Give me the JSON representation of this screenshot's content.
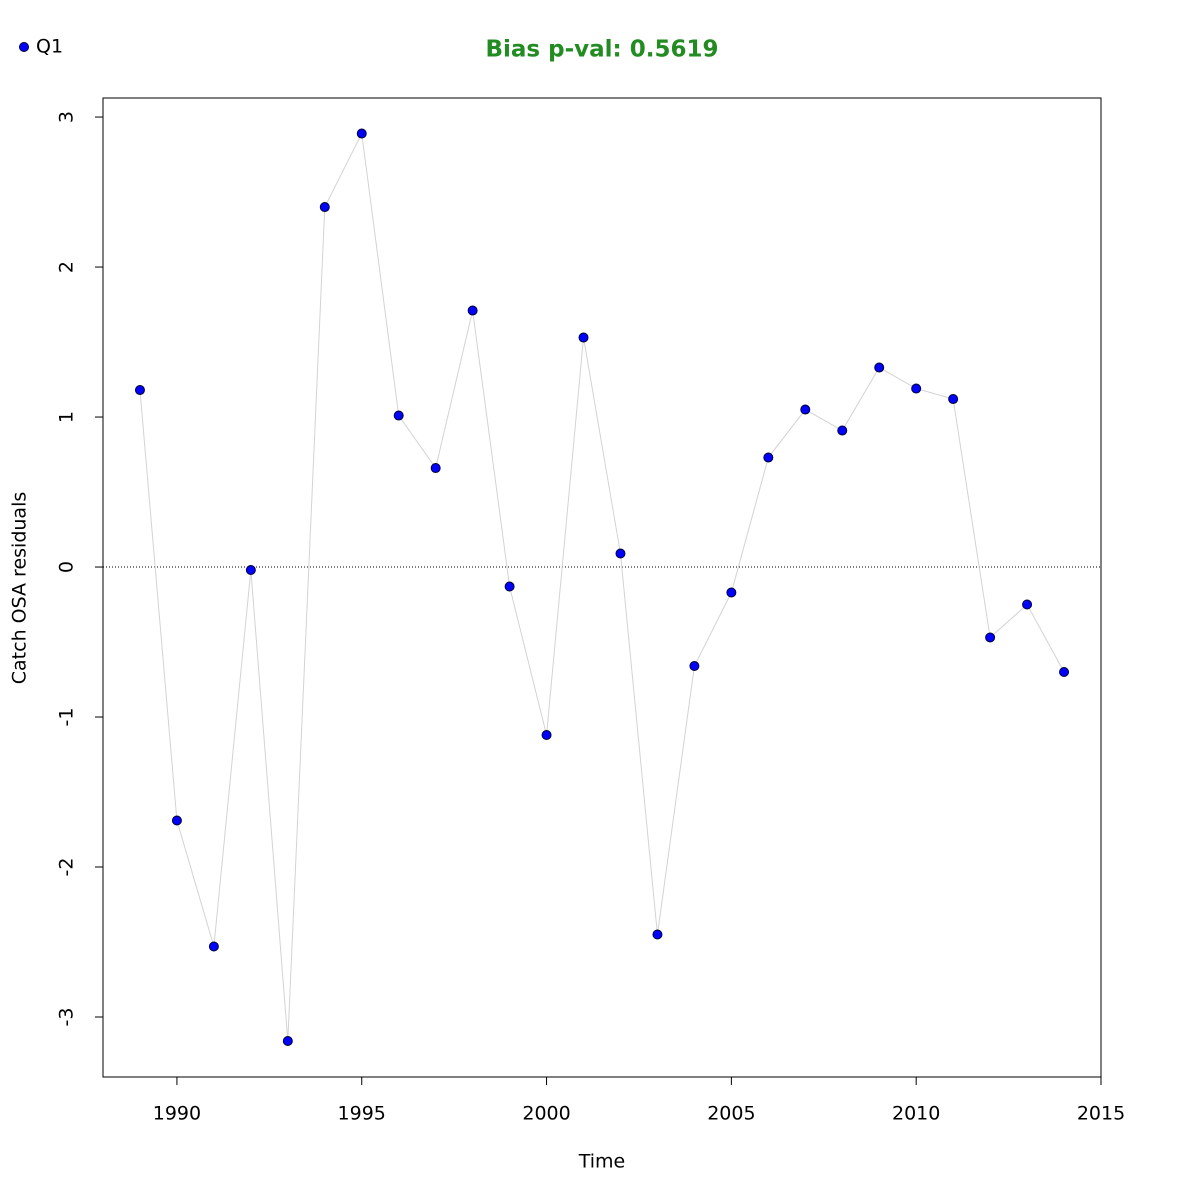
{
  "chart_data": {
    "type": "line",
    "title": "Bias p-val: 0.5619",
    "title_color": "#228b22",
    "x_label": "Time",
    "y_label": "Catch OSA residuals",
    "x": [
      1989,
      1990,
      1991,
      1992,
      1993,
      1994,
      1995,
      1996,
      1997,
      1998,
      1999,
      2000,
      2001,
      2002,
      2003,
      2004,
      2005,
      2006,
      2007,
      2008,
      2009,
      2010,
      2011,
      2012,
      2013,
      2014
    ],
    "series": [
      {
        "name": "Q1",
        "color": "#0000ff",
        "line_color": "#d3d3d3",
        "values": [
          1.18,
          -1.69,
          -2.53,
          -0.02,
          -3.16,
          2.4,
          2.89,
          1.01,
          0.66,
          1.71,
          -0.13,
          -1.12,
          1.53,
          0.09,
          -2.45,
          -0.66,
          -0.17,
          0.73,
          1.05,
          0.91,
          1.33,
          1.19,
          1.12,
          -0.47,
          -0.25,
          -0.7
        ]
      }
    ],
    "xlim": [
      1988,
      2015
    ],
    "ylim": [
      -3.4,
      3.127
    ],
    "xticks": [
      1990,
      1995,
      2000,
      2005,
      2010,
      2015
    ],
    "yticks": [
      -3,
      -2,
      -1,
      0,
      1,
      2,
      3
    ],
    "hline": 0,
    "legend": "top-left"
  }
}
